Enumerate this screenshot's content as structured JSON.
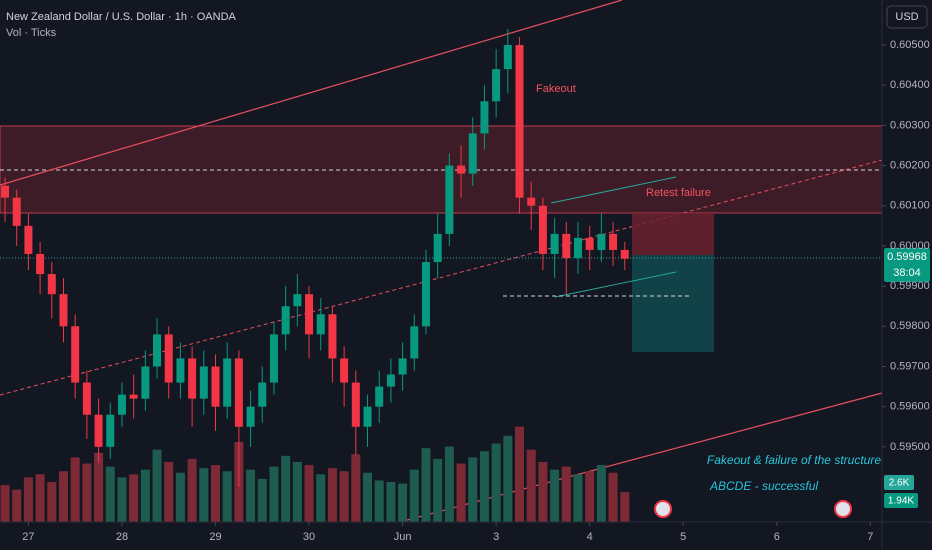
{
  "chart_data": {
    "type": "candlestick",
    "title": "New Zealand Dollar / U.S. Dollar · 1h · OANDA",
    "subtitle": "Vol · Ticks",
    "currency": "USD",
    "up_color": "#089981",
    "down_color": "#f23645",
    "volume_up_color": "#1f5c50",
    "volume_down_color": "#7d2a37",
    "annotations": [
      "Fakeout",
      "Retest failure",
      "Fakeout & failure of the structure",
      "ABCDE - successful"
    ],
    "last_price": 0.59968,
    "countdown": "38:04",
    "volume_ma_label": "2.6K",
    "volume_last_label": "1.94K",
    "xlim": [
      -0.43,
      75.0
    ],
    "xticks": [
      {
        "value": 2,
        "label": "27"
      },
      {
        "value": 10,
        "label": "28"
      },
      {
        "value": 18,
        "label": "29"
      },
      {
        "value": 26,
        "label": "30"
      },
      {
        "value": 34,
        "label": "Jun"
      },
      {
        "value": 42,
        "label": "3"
      },
      {
        "value": 50,
        "label": "4"
      },
      {
        "value": 58,
        "label": "5"
      },
      {
        "value": 66,
        "label": "6"
      },
      {
        "value": 74,
        "label": "7"
      }
    ],
    "ylim": [
      0.60612,
      0.59313
    ],
    "yticks": [
      {
        "value": 0.605,
        "label": "0.60500"
      },
      {
        "value": 0.604,
        "label": "0.60400"
      },
      {
        "value": 0.603,
        "label": "0.60300"
      },
      {
        "value": 0.602,
        "label": "0.60200"
      },
      {
        "value": 0.601,
        "label": "0.60100"
      },
      {
        "value": 0.6,
        "label": "0.60000"
      },
      {
        "value": 0.599,
        "label": "0.59900"
      },
      {
        "value": 0.598,
        "label": "0.59800"
      },
      {
        "value": 0.597,
        "label": "0.59700"
      },
      {
        "value": 0.596,
        "label": "0.59600"
      },
      {
        "value": 0.595,
        "label": "0.59500"
      }
    ],
    "vlim": [
      0,
      6500
    ],
    "open": [
      0.6015,
      0.6012,
      0.6005,
      0.5998,
      0.5993,
      0.5988,
      0.598,
      0.5966,
      0.5958,
      0.595,
      0.5958,
      0.5963,
      0.5962,
      0.597,
      0.5978,
      0.5966,
      0.5972,
      0.5962,
      0.597,
      0.596,
      0.5972,
      0.5955,
      0.596,
      0.5966,
      0.5978,
      0.5985,
      0.5988,
      0.5978,
      0.5983,
      0.5972,
      0.5966,
      0.5955,
      0.596,
      0.5965,
      0.5968,
      0.5972,
      0.598,
      0.5996,
      0.6003,
      0.602,
      0.6018,
      0.6028,
      0.6036,
      0.6044,
      0.605,
      0.6012,
      0.601,
      0.5998,
      0.6003,
      0.5997,
      0.6002,
      0.5999,
      0.6003,
      0.5999
    ],
    "high": [
      0.6017,
      0.6014,
      0.6008,
      0.6001,
      0.5996,
      0.5992,
      0.5983,
      0.5969,
      0.5962,
      0.5961,
      0.5966,
      0.5968,
      0.5974,
      0.5982,
      0.598,
      0.5976,
      0.5975,
      0.5974,
      0.5973,
      0.5976,
      0.5974,
      0.5964,
      0.597,
      0.5981,
      0.599,
      0.5993,
      0.599,
      0.5987,
      0.5985,
      0.5975,
      0.5969,
      0.5963,
      0.5969,
      0.5972,
      0.5976,
      0.5983,
      0.5999,
      0.6008,
      0.6023,
      0.6025,
      0.6032,
      0.604,
      0.6049,
      0.6054,
      0.6052,
      0.6016,
      0.6012,
      0.6007,
      0.6006,
      0.6006,
      0.6005,
      0.6008,
      0.6006,
      0.6001
    ],
    "low": [
      0.6006,
      0.6,
      0.5994,
      0.5988,
      0.5982,
      0.5976,
      0.5962,
      0.5952,
      0.5946,
      0.5947,
      0.5955,
      0.5957,
      0.5959,
      0.5967,
      0.5962,
      0.5962,
      0.5955,
      0.5958,
      0.5954,
      0.5957,
      0.594,
      0.595,
      0.5956,
      0.5963,
      0.5974,
      0.598,
      0.5972,
      0.5974,
      0.5966,
      0.596,
      0.5948,
      0.595,
      0.5956,
      0.5961,
      0.5964,
      0.5969,
      0.5978,
      0.5992,
      0.6,
      0.6012,
      0.6015,
      0.6024,
      0.6032,
      0.6038,
      0.6008,
      0.6004,
      0.5994,
      0.5992,
      0.5988,
      0.5993,
      0.5994,
      0.5996,
      0.5995,
      0.5994
    ],
    "close": [
      0.6012,
      0.6005,
      0.5998,
      0.5993,
      0.5988,
      0.598,
      0.5966,
      0.5958,
      0.595,
      0.5958,
      0.5963,
      0.5962,
      0.597,
      0.5978,
      0.5966,
      0.5972,
      0.5962,
      0.597,
      0.596,
      0.5972,
      0.5955,
      0.596,
      0.5966,
      0.5978,
      0.5985,
      0.5988,
      0.5978,
      0.5983,
      0.5972,
      0.5966,
      0.5955,
      0.596,
      0.5965,
      0.5968,
      0.5972,
      0.598,
      0.5996,
      0.6003,
      0.602,
      0.6018,
      0.6028,
      0.6036,
      0.6044,
      0.605,
      0.6012,
      0.601,
      0.5998,
      0.6003,
      0.5997,
      0.6002,
      0.5999,
      0.6003,
      0.5999,
      0.59968
    ],
    "volumes": [
      2400,
      2100,
      2900,
      3100,
      2600,
      3300,
      4200,
      3800,
      4500,
      3600,
      2900,
      3100,
      3400,
      4700,
      3900,
      3200,
      4100,
      3500,
      3700,
      3300,
      5200,
      3400,
      2800,
      3600,
      4300,
      3900,
      3700,
      3100,
      3500,
      3300,
      4400,
      3200,
      2700,
      2600,
      2500,
      3400,
      4800,
      4100,
      4900,
      3800,
      4200,
      4600,
      5100,
      5600,
      6200,
      4700,
      3900,
      3400,
      3600,
      3100,
      3300,
      3700,
      3200,
      1940
    ]
  }
}
